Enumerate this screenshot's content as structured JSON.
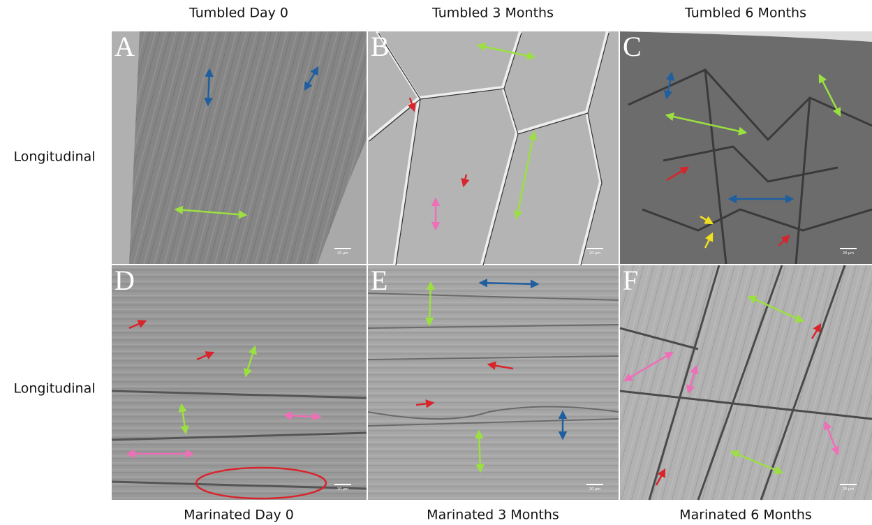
{
  "columns_top": [
    "Tumbled Day 0",
    "Tumbled 3 Months",
    "Tumbled 6 Months"
  ],
  "columns_bottom": [
    "Marinated Day 0",
    "Marinated 3 Months",
    "Marinated 6 Months"
  ],
  "rows": [
    "Longitudinal",
    "Longitudinal"
  ],
  "panels": [
    "A",
    "B",
    "C",
    "D",
    "E",
    "F"
  ],
  "scale_bar_label": "20 μm"
}
